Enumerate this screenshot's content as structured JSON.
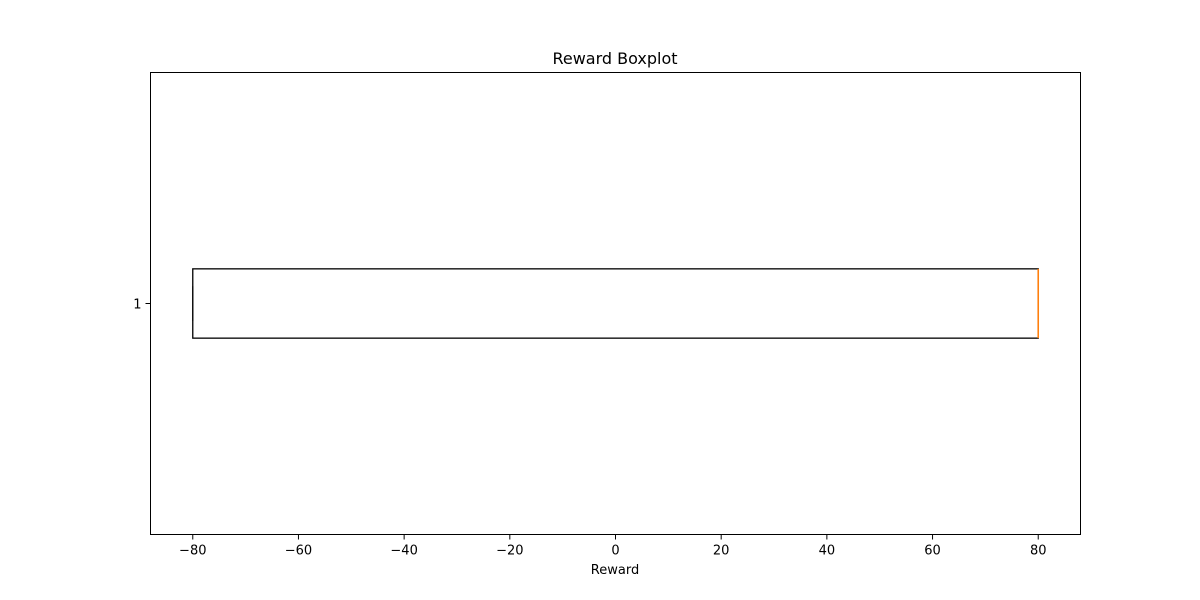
{
  "chart_data": {
    "type": "boxplot",
    "title": "Reward Boxplot",
    "xlabel": "Reward",
    "ylabel": "",
    "orientation": "horizontal",
    "xlim": [
      -88,
      88
    ],
    "xticks": [
      -80,
      -60,
      -40,
      -20,
      0,
      20,
      40,
      60,
      80
    ],
    "xtick_labels": [
      "−80",
      "−60",
      "−40",
      "−20",
      "0",
      "20",
      "40",
      "60",
      "80"
    ],
    "categories": [
      "1"
    ],
    "boxes": [
      {
        "label": "1",
        "whisker_low": -80,
        "q1": -80,
        "median": 80,
        "q3": 80,
        "whisker_high": 80
      }
    ],
    "grid": false,
    "colors": {
      "box": "#000000",
      "median": "#ff7f0e",
      "axes": "#000000"
    }
  }
}
